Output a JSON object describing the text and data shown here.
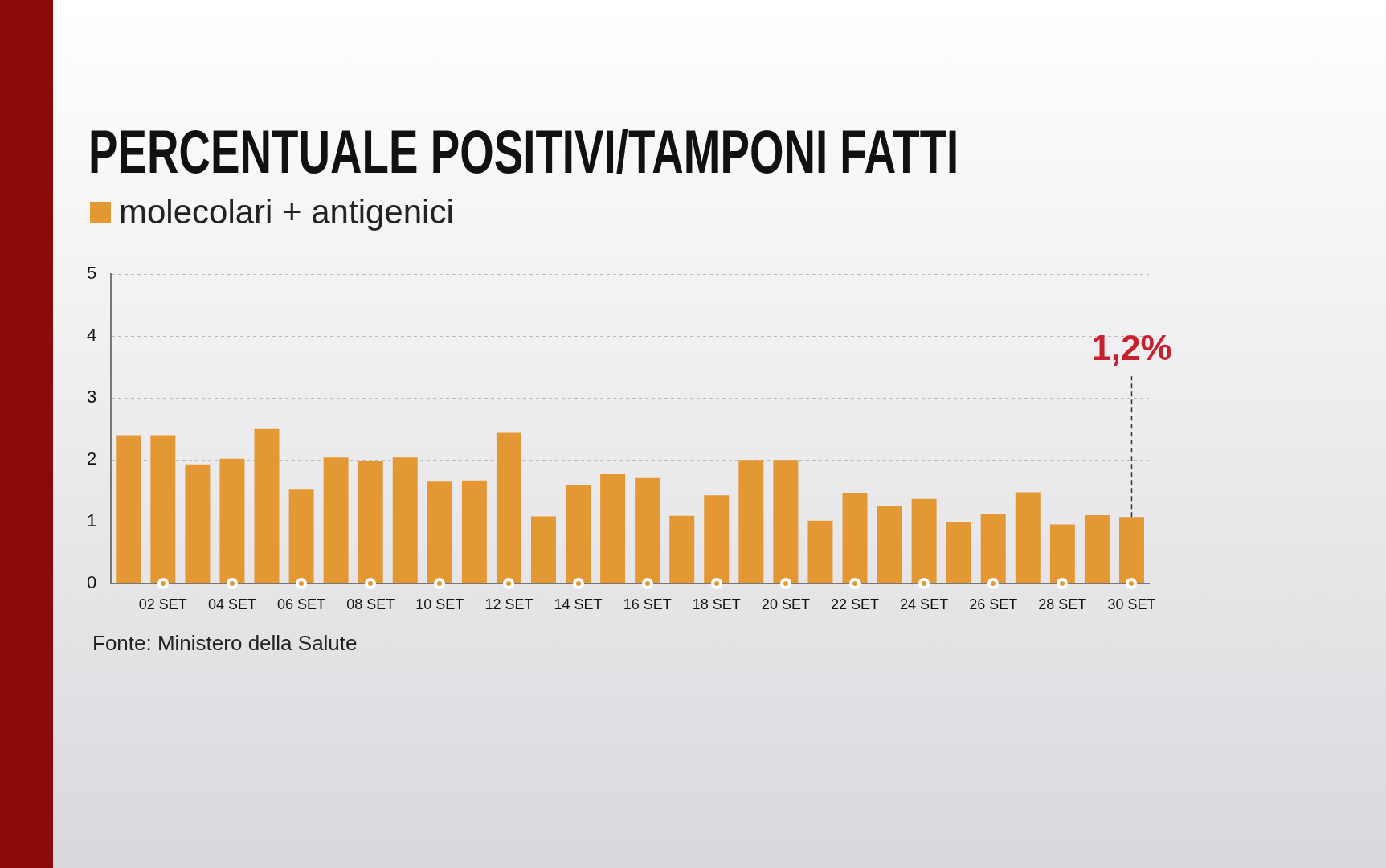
{
  "chart_data": {
    "type": "bar",
    "title": "PERCENTUALE POSITIVI/TAMPONI FATTI",
    "categories": [
      null,
      "02 SET",
      null,
      "04 SET",
      null,
      "06 SET",
      null,
      "08 SET",
      null,
      "10 SET",
      null,
      "12 SET",
      null,
      "14 SET",
      null,
      "16 SET",
      null,
      "18 SET",
      null,
      "20 SET",
      null,
      "22 SET",
      null,
      "24 SET",
      null,
      "26 SET",
      null,
      "28 SET",
      null,
      "30 SET"
    ],
    "series": [
      {
        "name": "molecolari + antigenici",
        "color": "#e39833",
        "values": [
          2.4,
          2.4,
          1.93,
          2.02,
          2.5,
          1.52,
          2.04,
          1.98,
          2.04,
          1.65,
          1.67,
          2.44,
          1.09,
          1.6,
          1.77,
          1.71,
          1.1,
          1.43,
          2.0,
          2.0,
          1.02,
          1.47,
          1.25,
          1.37,
          1.0,
          1.12,
          1.48,
          0.96,
          1.11,
          1.08
        ]
      }
    ],
    "ylim": [
      0,
      5
    ],
    "yticks": [
      0,
      1,
      2,
      3,
      4,
      5
    ],
    "grid": "y",
    "legend": "top left",
    "annotations": [
      {
        "text": "1,2%",
        "x": "30 SET",
        "y": 1.08
      },
      "Fonte: Ministero della Salute"
    ]
  }
}
